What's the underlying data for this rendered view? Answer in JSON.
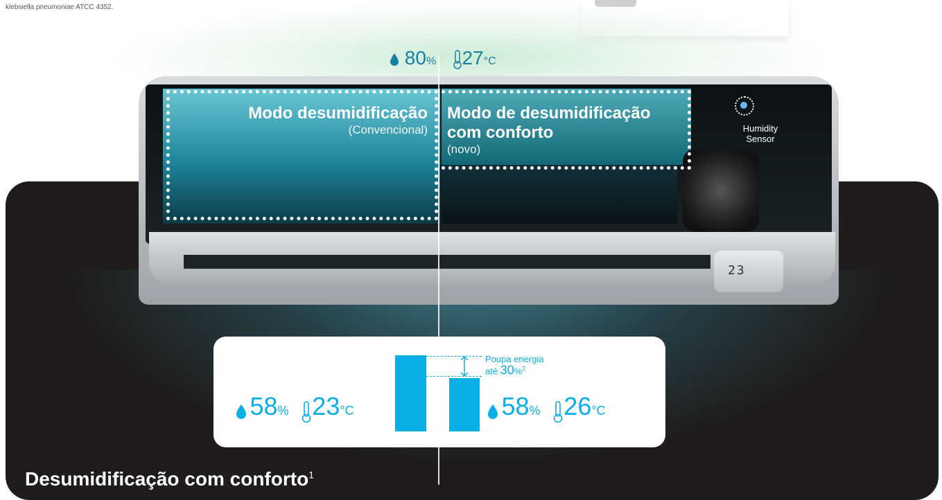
{
  "top_note": "klebsiella pneumoniae ATCC 4352.",
  "header_reading": {
    "humidity": "80",
    "humidity_unit": "%",
    "temperature": "27",
    "temperature_unit": "°C"
  },
  "left_mode": {
    "title": "Modo desumidificação",
    "subtitle": "(Convencional)"
  },
  "right_mode": {
    "title_line1": "Modo de desumidificação",
    "title_line2": "com conforto",
    "subtitle": "(novo)"
  },
  "sensor": {
    "line1": "Humidity",
    "line2": "Sensor"
  },
  "display_value": "23",
  "comparison": {
    "left": {
      "humidity": "58",
      "humidity_unit": "%",
      "temperature": "23",
      "temperature_unit": "°C"
    },
    "right": {
      "humidity": "58",
      "humidity_unit": "%",
      "temperature": "26",
      "temperature_unit": "°C"
    },
    "saving_note_line1": "Poupa energia",
    "saving_note_prefix": "até",
    "saving_note_value": "30",
    "saving_note_unit": "%",
    "saving_note_footnote": "2",
    "bars": [
      1.0,
      0.7
    ]
  },
  "bottom_title": {
    "text": "Desumidificação com conforto",
    "footnote": "1"
  },
  "colors": {
    "accent": "#0aaee6",
    "panel": "#1f1c1b",
    "title_blue": "#1a7fa2"
  }
}
